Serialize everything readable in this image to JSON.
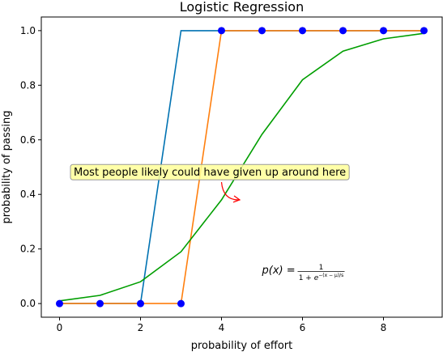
{
  "chart_data": {
    "type": "line",
    "title": "Logistic Regression",
    "xlabel": "probability of effort",
    "ylabel": "probability of passing",
    "xlim": [
      -0.45,
      9.45
    ],
    "ylim": [
      -0.05,
      1.05
    ],
    "xticks": [
      0,
      2,
      4,
      6,
      8
    ],
    "xtick_labels": [
      "0",
      "2",
      "4",
      "6",
      "8"
    ],
    "yticks": [
      0.0,
      0.2,
      0.4,
      0.6,
      0.8,
      1.0
    ],
    "ytick_labels": [
      "0.0",
      "0.2",
      "0.4",
      "0.6",
      "0.8",
      "1.0"
    ],
    "grid": false,
    "series": [
      {
        "name": "",
        "kind": "line",
        "color": "#0072B2",
        "x": [
          0,
          1,
          2,
          3,
          4,
          5,
          6,
          7,
          8,
          9
        ],
        "y": [
          0,
          0,
          0,
          1,
          1,
          1,
          1,
          1,
          1,
          1
        ]
      },
      {
        "name": "",
        "kind": "line",
        "color": "#ff7f0e",
        "x": [
          0,
          1,
          2,
          3,
          4,
          5,
          6,
          7,
          8,
          9
        ],
        "y": [
          0,
          0,
          0,
          0,
          1,
          1,
          1,
          1,
          1,
          1
        ]
      },
      {
        "name": "",
        "kind": "line",
        "color": "#009E00",
        "x": [
          0,
          1,
          2,
          3,
          4,
          5,
          6,
          7,
          8,
          9
        ],
        "y": [
          0.01,
          0.03,
          0.08,
          0.19,
          0.38,
          0.62,
          0.82,
          0.925,
          0.97,
          0.99
        ]
      },
      {
        "name": "",
        "kind": "scatter",
        "color": "#0000ff",
        "x": [
          0,
          1,
          2,
          3,
          4,
          5,
          6,
          7,
          8,
          9
        ],
        "y": [
          0,
          0,
          0,
          0,
          1,
          1,
          1,
          1,
          1,
          1
        ]
      }
    ],
    "annotations": [
      {
        "text": "Most people likely could have given up around here",
        "text_xy": [
          0.35,
          0.48
        ],
        "arrow_to": [
          4.45,
          0.38
        ],
        "box_color": "#ffff99",
        "arrow_color": "#ff0000"
      },
      {
        "text": "p(x) = 1 / (1 + e^(−(x − μ)/s))",
        "text_xy": [
          5.0,
          0.11
        ]
      }
    ]
  }
}
